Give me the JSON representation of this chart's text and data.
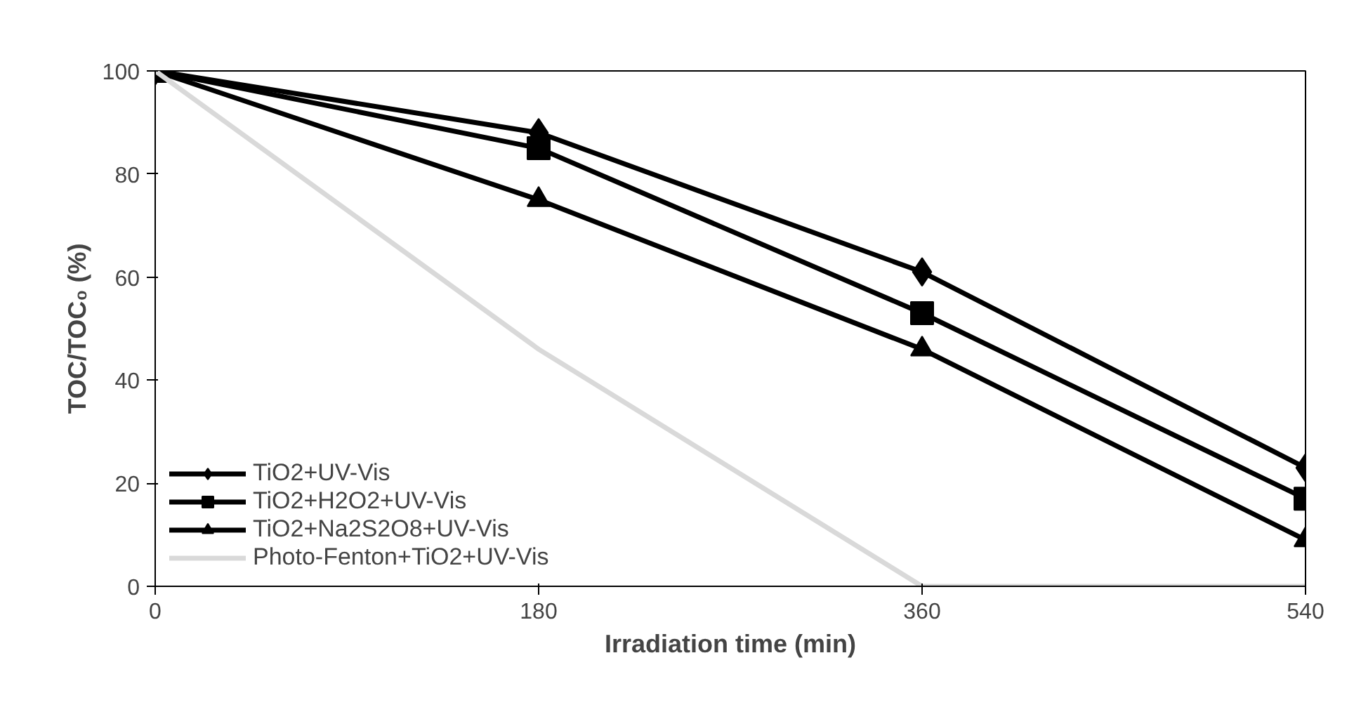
{
  "chart_data": {
    "type": "line",
    "xlabel": "Irradiation time (min)",
    "ylabel": "TOC/TOC₀ (%)",
    "x": [
      0,
      180,
      360,
      540
    ],
    "xlim": [
      0,
      540
    ],
    "xticks": [
      0,
      180,
      360,
      540
    ],
    "ylim": [
      0,
      100
    ],
    "yticks": [
      0,
      20,
      40,
      60,
      80,
      100
    ],
    "grid": false,
    "legend": "bottom left",
    "line_style": "solid",
    "series": [
      {
        "name": "TiO2+UV-Vis",
        "color": "#000000",
        "marker": "diamond",
        "values": [
          100,
          88,
          61,
          23
        ]
      },
      {
        "name": "TiO2+H2O2+UV-Vis",
        "color": "#000000",
        "marker": "square",
        "values": [
          100,
          85,
          53,
          17
        ]
      },
      {
        "name": "TiO2+Na2S2O8+UV-Vis",
        "color": "#000000",
        "marker": "triangle",
        "values": [
          100,
          75,
          46,
          9
        ]
      },
      {
        "name": "Photo-Fenton+TiO2+UV-Vis",
        "color": "#d9d9d9",
        "marker": "none",
        "values": [
          100,
          46,
          0,
          0
        ]
      }
    ]
  }
}
